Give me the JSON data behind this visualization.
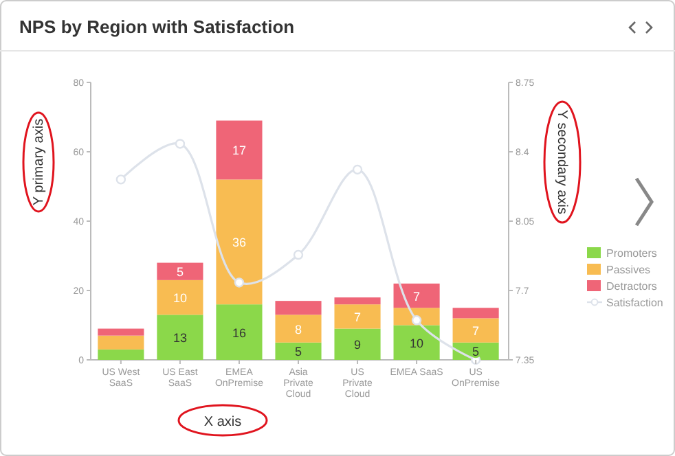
{
  "chart_data": {
    "type": "bar",
    "title": "NPS by Region with Satisfaction",
    "xlabel": "X axis",
    "ylabel": "Y primary axis",
    "y2label": "Y secondary axis",
    "categories": [
      "US West SaaS",
      "US East SaaS",
      "EMEA OnPremise",
      "Asia Private Cloud",
      "US Private Cloud",
      "EMEA SaaS",
      "US OnPremise"
    ],
    "stacked": true,
    "legend": "right",
    "marker": "circle",
    "line_style": "solid",
    "ylim": [
      0,
      80
    ],
    "yticks": [
      0,
      20,
      40,
      60,
      80
    ],
    "y2lim": [
      7.35,
      8.75
    ],
    "y2ticks": [
      7.35,
      7.7,
      8.05,
      8.4,
      8.75
    ],
    "series": [
      {
        "name": "Promoters",
        "color": "#8bd84a",
        "values": [
          3,
          13,
          16,
          5,
          9,
          10,
          5
        ],
        "value_labels": [
          null,
          "13",
          "16",
          "5",
          "9",
          "10",
          "5"
        ]
      },
      {
        "name": "Passives",
        "color": "#f8bc52",
        "values": [
          4,
          10,
          36,
          8,
          7,
          5,
          7
        ],
        "value_labels": [
          null,
          "10",
          "36",
          "8",
          "7",
          null,
          "7"
        ]
      },
      {
        "name": "Detractors",
        "color": "#ef6577",
        "values": [
          2,
          5,
          17,
          4,
          2,
          7,
          3
        ],
        "value_labels": [
          null,
          "5",
          "17",
          null,
          null,
          "7",
          null
        ]
      },
      {
        "name": "Satisfaction",
        "type": "line",
        "axis": "y2",
        "color": "#dde2ea",
        "values": [
          8.26,
          8.44,
          7.74,
          7.88,
          8.31,
          7.55,
          7.35
        ]
      }
    ]
  }
}
